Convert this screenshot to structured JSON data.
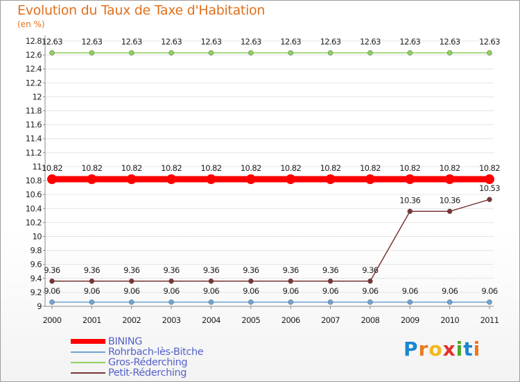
{
  "title": "Evolution du Taux de Taxe d'Habitation",
  "unit": "(en %)",
  "logo": {
    "text": "Proxiti",
    "letters": [
      "P",
      "r",
      "o",
      "x",
      "i",
      "t",
      "i"
    ],
    "colors": [
      "#1b86d1",
      "#e87a1e",
      "#f4b81a",
      "#e2312d",
      "#4aa829",
      "#1b86d1",
      "#e87a1e"
    ]
  },
  "chart_data": {
    "type": "line",
    "title": "Evolution du Taux de Taxe d'Habitation",
    "ylabel": "(en %)",
    "xlabel": "",
    "x": [
      "2000",
      "2001",
      "2002",
      "2003",
      "2004",
      "2005",
      "2006",
      "2007",
      "2008",
      "2009",
      "2010",
      "2011"
    ],
    "ylim": [
      9,
      12.8
    ],
    "yticks": [
      "9",
      "9.2",
      "9.4",
      "9.6",
      "9.8",
      "10",
      "10.2",
      "10.4",
      "10.6",
      "10.8",
      "11",
      "11.2",
      "11.4",
      "11.6",
      "11.8",
      "12",
      "12.2",
      "12.4",
      "12.6",
      "12.8"
    ],
    "series": [
      {
        "name": "BINING",
        "color": "#ff0000",
        "values": [
          10.82,
          10.82,
          10.82,
          10.82,
          10.82,
          10.82,
          10.82,
          10.82,
          10.82,
          10.82,
          10.82,
          10.82
        ],
        "labels": [
          "10.82",
          "10.82",
          "10.82",
          "10.82",
          "10.82",
          "10.82",
          "10.82",
          "10.82",
          "10.82",
          "10.82",
          "10.82",
          "10.82"
        ]
      },
      {
        "name": "Rohrbach-lès-Bitche",
        "color": "#6fa4d4",
        "values": [
          9.06,
          9.06,
          9.06,
          9.06,
          9.06,
          9.06,
          9.06,
          9.06,
          9.06,
          9.06,
          9.06,
          9.06
        ],
        "labels": [
          "9.06",
          "9.06",
          "9.06",
          "9.06",
          "9.06",
          "9.06",
          "9.06",
          "9.06",
          "9.06",
          "9.06",
          "9.06",
          "9.06"
        ]
      },
      {
        "name": "Gros-Réderching",
        "color": "#8ed05c",
        "values": [
          12.63,
          12.63,
          12.63,
          12.63,
          12.63,
          12.63,
          12.63,
          12.63,
          12.63,
          12.63,
          12.63,
          12.63
        ],
        "labels": [
          "12.63",
          "12.63",
          "12.63",
          "12.63",
          "12.63",
          "12.63",
          "12.63",
          "12.63",
          "12.63",
          "12.63",
          "12.63",
          "12.63"
        ]
      },
      {
        "name": "Petit-Réderching",
        "color": "#7a3535",
        "values": [
          9.36,
          9.36,
          9.36,
          9.36,
          9.36,
          9.36,
          9.36,
          9.36,
          9.36,
          10.36,
          10.36,
          10.53
        ],
        "labels": [
          "9.36",
          "9.36",
          "9.36",
          "9.36",
          "9.36",
          "9.36",
          "9.36",
          "9.36",
          "9.36",
          "10.36",
          "10.36",
          "10.53"
        ]
      }
    ]
  }
}
